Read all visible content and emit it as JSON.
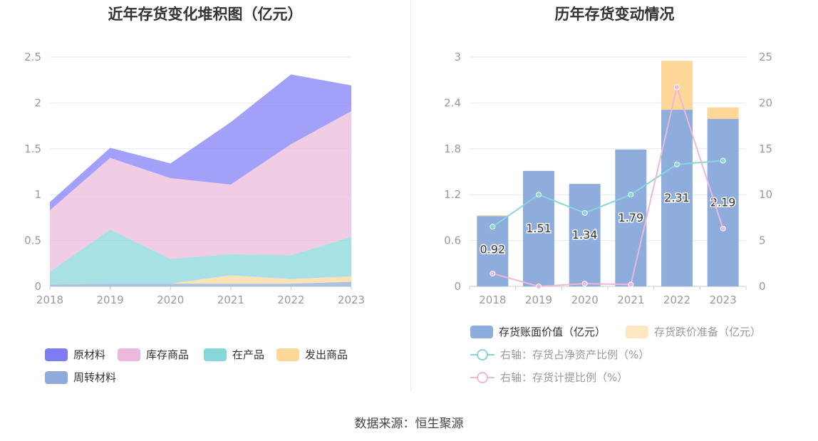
{
  "source": "数据来源：恒生聚源",
  "chart_data": [
    {
      "type": "area",
      "title": "近年存货变化堆积图（亿元）",
      "x": [
        "2018",
        "2019",
        "2020",
        "2021",
        "2022",
        "2023"
      ],
      "ylim": [
        0,
        2.5
      ],
      "yticks": [
        "0",
        "0.5",
        "1",
        "1.5",
        "2",
        "2.5"
      ],
      "stacked": true,
      "grid": true,
      "legend_position": "bottom",
      "series": [
        {
          "name": "周转材料",
          "color": "#8fabdc",
          "values": [
            0.02,
            0.03,
            0.03,
            0.03,
            0.03,
            0.05
          ]
        },
        {
          "name": "发出商品",
          "color": "#ffd799",
          "values": [
            0.0,
            0.0,
            0.0,
            0.09,
            0.05,
            0.06
          ]
        },
        {
          "name": "在产品",
          "color": "#86d6da",
          "values": [
            0.14,
            0.59,
            0.27,
            0.23,
            0.26,
            0.43
          ]
        },
        {
          "name": "库存商品",
          "color": "#ecb8db",
          "values": [
            0.67,
            0.78,
            0.88,
            0.76,
            1.21,
            1.37
          ]
        },
        {
          "name": "原材料",
          "color": "#7e7cf5",
          "values": [
            0.09,
            0.11,
            0.16,
            0.68,
            0.76,
            0.28
          ]
        }
      ],
      "legend_order": [
        "原材料",
        "库存商品",
        "在产品",
        "发出商品",
        "周转材料"
      ]
    },
    {
      "type": "bar",
      "title": "历年存货变动情况",
      "categories": [
        "2018",
        "2019",
        "2020",
        "2021",
        "2022",
        "2023"
      ],
      "ylim": [
        0,
        3
      ],
      "yticks": [
        "0",
        "0.6",
        "1.2",
        "1.8",
        "2.4",
        "3"
      ],
      "y2lim": [
        0,
        25
      ],
      "y2ticks": [
        "0",
        "5",
        "10",
        "15",
        "20",
        "25"
      ],
      "stacked": true,
      "grid": true,
      "legend_position": "bottom",
      "series": [
        {
          "name": "存货账面价值（亿元）",
          "kind": "bar",
          "color": "#8eaddd",
          "values": [
            0.92,
            1.51,
            1.34,
            1.79,
            2.31,
            2.19
          ],
          "labels": [
            "0.92",
            "1.51",
            "1.34",
            "1.79",
            "2.31",
            "2.19"
          ]
        },
        {
          "name": "存货跌价准备（亿元）",
          "kind": "bar",
          "color": "#ffd799",
          "values": [
            0.01,
            0.0,
            0.0,
            0.0,
            0.64,
            0.15
          ]
        },
        {
          "name": "右轴：存货占净资产比例（%）",
          "kind": "line",
          "axis": "right",
          "color": "#86d6da",
          "values": [
            6.5,
            10.0,
            8.0,
            10.0,
            13.3,
            13.7
          ]
        },
        {
          "name": "右轴：存货计提比例（%）",
          "kind": "line",
          "axis": "right",
          "color": "#ecb8db",
          "values": [
            1.4,
            0.0,
            0.3,
            0.2,
            21.7,
            6.3
          ]
        }
      ]
    }
  ]
}
